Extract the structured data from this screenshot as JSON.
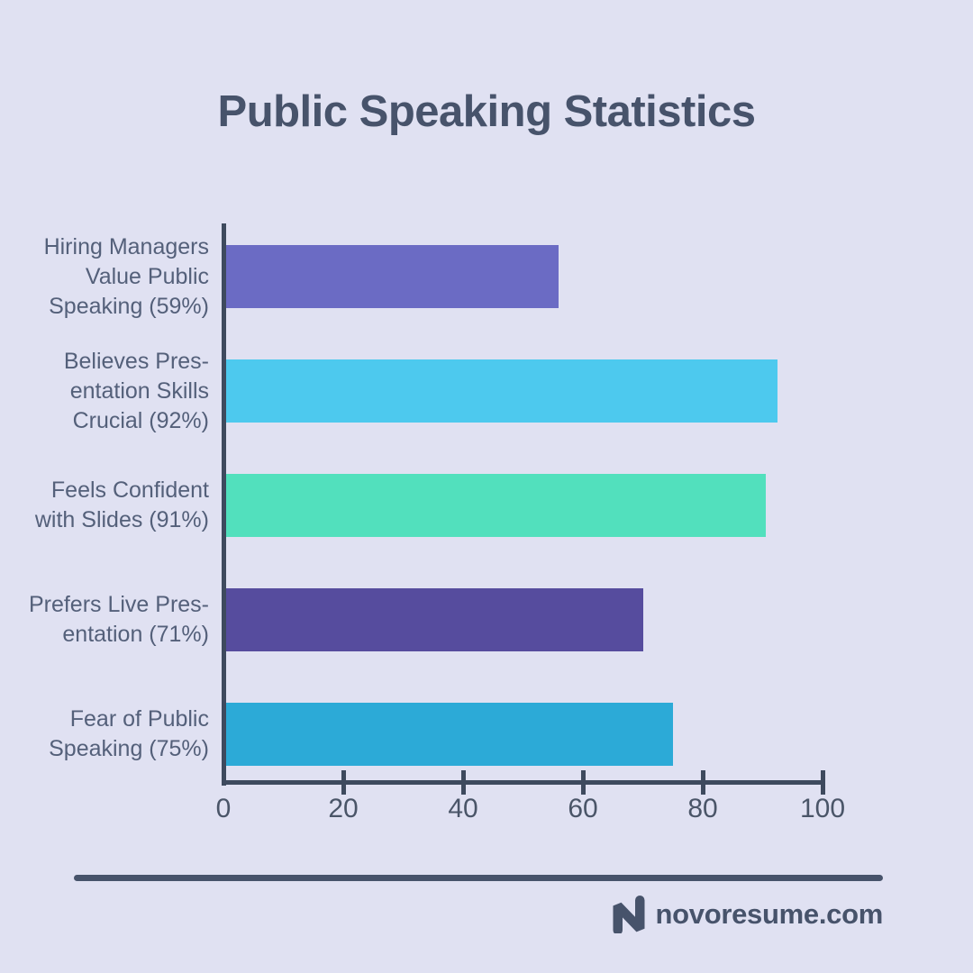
{
  "title": "Public Speaking Statistics",
  "colors": {
    "background": "#e0e1f2",
    "axis": "#3e4a5e",
    "title_text": "#47536b",
    "category_text": "#54607a",
    "tick_text": "#4a5568",
    "divider": "#47536b"
  },
  "chart_data": {
    "type": "bar",
    "orientation": "horizontal",
    "title": "Public Speaking Statistics",
    "xlabel": "",
    "ylabel": "",
    "xlim": [
      0,
      100
    ],
    "xticks": [
      0,
      20,
      40,
      60,
      80,
      100
    ],
    "grid": false,
    "legend": false,
    "categories": [
      "Hiring Managers Value Public Speaking",
      "Believes Presentation Skills Crucial",
      "Feels Confident with Slides",
      "Prefers Live Presentation",
      "Fear of Public Speaking"
    ],
    "values": [
      59,
      92,
      91,
      71,
      75
    ],
    "bars": [
      {
        "label_lines": [
          "Hiring Managers",
          "Value Public",
          "Speaking (59%)"
        ],
        "value": 59,
        "rendered_length": 56,
        "color": "#6b6bc4"
      },
      {
        "label_lines": [
          "Believes Pres-",
          "entation Skills",
          "Crucial (92%)"
        ],
        "value": 92,
        "rendered_length": 92.5,
        "color": "#4dc9ee"
      },
      {
        "label_lines": [
          "Feels Confident",
          "with Slides (91%)"
        ],
        "value": 91,
        "rendered_length": 90.5,
        "color": "#52e0bd"
      },
      {
        "label_lines": [
          "Prefers Live Pres-",
          "entation (71%)"
        ],
        "value": 71,
        "rendered_length": 70,
        "color": "#564c9e"
      },
      {
        "label_lines": [
          "Fear of Public",
          "Speaking (75%)"
        ],
        "value": 75,
        "rendered_length": 75,
        "color": "#2caad7"
      }
    ]
  },
  "footer": {
    "brand": "novoresume.com",
    "logo_icon": "novoresume-n-icon"
  }
}
